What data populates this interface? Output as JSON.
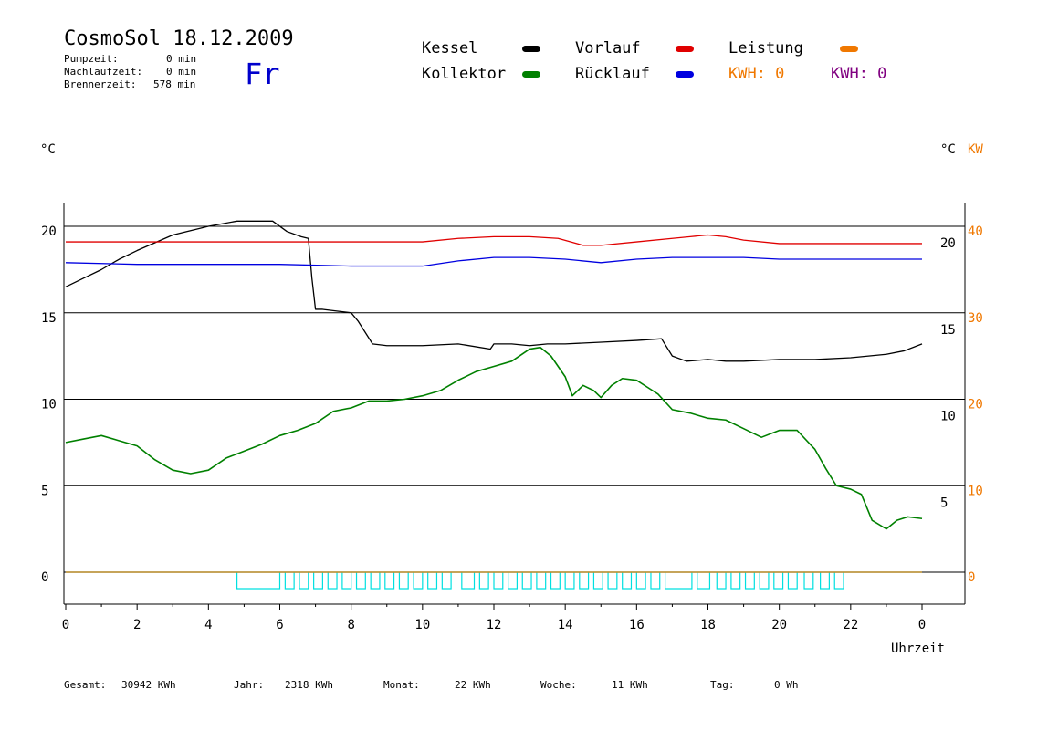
{
  "header": {
    "title": "CosmoSol 18.12.2009",
    "day": "Fr",
    "pumpzeit_label": "Pumpzeit:",
    "pumpzeit_value": "0 min",
    "nachlaufzeit_label": "Nachlaufzeit:",
    "nachlaufzeit_value": "0 min",
    "brennerzeit_label": "Brennerzeit:",
    "brennerzeit_value": "578 min"
  },
  "legend": {
    "kessel": "Kessel",
    "kollektor": "Kollektor",
    "vorlauf": "Vorlauf",
    "ruecklauf": "Rücklauf",
    "leistung": "Leistung",
    "kwh_orange": "KWH: 0",
    "kwh_purple": "KWH: 0"
  },
  "colors": {
    "kessel": "#000000",
    "kollektor": "#008000",
    "vorlauf": "#e00000",
    "ruecklauf": "#0000e0",
    "leistung": "#f07800",
    "kwh_purple": "#800080",
    "pump": "#00e0e0",
    "axis_right_kw": "#f07800"
  },
  "units": {
    "left": "°C",
    "right_c": "°C",
    "right_kw": "KW"
  },
  "footer": {
    "gesamt_label": "Gesamt:",
    "gesamt_value": "30942 KWh",
    "jahr_label": "Jahr:",
    "jahr_value": "2318 KWh",
    "monat_label": "Monat:",
    "monat_value": "22 KWh",
    "woche_label": "Woche:",
    "woche_value": "11 KWh",
    "tag_label": "Tag:",
    "tag_value": "0 Wh"
  },
  "chart_data": {
    "type": "line",
    "xlabel": "Uhrzeit",
    "xlim": [
      0,
      24
    ],
    "x_ticks": [
      "0",
      "2",
      "4",
      "6",
      "8",
      "10",
      "12",
      "14",
      "16",
      "18",
      "20",
      "22",
      "0"
    ],
    "left_axis": {
      "ylim": [
        -1.8,
        21.5
      ],
      "ticks": [
        "0",
        "5",
        "10",
        "15",
        "20"
      ]
    },
    "right_inner_axis": {
      "ticks": [
        "5",
        "10",
        "15",
        "20"
      ]
    },
    "right_kw_axis": {
      "ylim": [
        0,
        40
      ],
      "ticks": [
        "0",
        "10",
        "20",
        "30",
        "40"
      ]
    },
    "grid": true,
    "series": [
      {
        "name": "Kessel",
        "color_key": "kessel",
        "x": [
          0,
          0.5,
          1,
          1.5,
          2,
          3,
          4,
          4.8,
          5.5,
          5.8,
          6.2,
          6.6,
          6.8,
          6.9,
          7,
          7.2,
          7.6,
          8,
          8.2,
          8.6,
          9,
          10,
          11,
          11.9,
          12,
          12.5,
          13,
          13.5,
          14,
          15,
          16,
          16.7,
          17,
          17.4,
          18,
          18.5,
          19,
          20,
          21,
          22,
          23,
          23.5,
          24
        ],
        "y": [
          16.5,
          17,
          17.5,
          18.1,
          18.6,
          19.5,
          20.0,
          20.3,
          20.3,
          20.3,
          19.7,
          19.4,
          19.3,
          17,
          15.2,
          15.2,
          15.1,
          15.0,
          14.5,
          13.2,
          13.1,
          13.1,
          13.2,
          12.9,
          13.2,
          13.2,
          13.1,
          13.2,
          13.2,
          13.3,
          13.4,
          13.5,
          12.5,
          12.2,
          12.3,
          12.2,
          12.2,
          12.3,
          12.3,
          12.4,
          12.6,
          12.8,
          13.2
        ]
      },
      {
        "name": "Kollektor",
        "color_key": "kollektor",
        "x": [
          0,
          0.5,
          1,
          1.5,
          2,
          2.5,
          3,
          3.5,
          4,
          4.5,
          5,
          5.5,
          6,
          6.5,
          7,
          7.5,
          8,
          8.5,
          9,
          9.5,
          10,
          10.5,
          11,
          11.5,
          12,
          12.5,
          13,
          13.3,
          13.6,
          14,
          14.2,
          14.5,
          14.8,
          15,
          15.3,
          15.6,
          16,
          16.3,
          16.6,
          17,
          17.5,
          18,
          18.5,
          19,
          19.5,
          20,
          20.5,
          21,
          21.3,
          21.6,
          22,
          22.3,
          22.6,
          23,
          23.3,
          23.6,
          24
        ],
        "y": [
          7.5,
          7.7,
          7.9,
          7.6,
          7.3,
          6.5,
          5.9,
          5.7,
          5.9,
          6.6,
          7.0,
          7.4,
          7.9,
          8.2,
          8.6,
          9.3,
          9.5,
          9.9,
          9.9,
          10.0,
          10.2,
          10.5,
          11.1,
          11.6,
          11.9,
          12.2,
          12.9,
          13.0,
          12.5,
          11.3,
          10.2,
          10.8,
          10.5,
          10.1,
          10.8,
          11.2,
          11.1,
          10.7,
          10.3,
          9.4,
          9.2,
          8.9,
          8.8,
          8.3,
          7.8,
          8.2,
          8.2,
          7.1,
          6.0,
          5.0,
          4.8,
          4.5,
          3.0,
          2.5,
          3.0,
          3.2,
          3.1
        ]
      },
      {
        "name": "Vorlauf",
        "color_key": "vorlauf",
        "x": [
          0,
          2,
          4,
          6,
          8,
          10,
          11,
          12,
          13,
          13.8,
          14.5,
          15,
          16,
          17,
          17.5,
          18,
          18.5,
          19,
          20,
          22,
          24
        ],
        "y": [
          19.1,
          19.1,
          19.1,
          19.1,
          19.1,
          19.1,
          19.3,
          19.4,
          19.4,
          19.3,
          18.9,
          18.9,
          19.1,
          19.3,
          19.4,
          19.5,
          19.4,
          19.2,
          19.0,
          19.0,
          19.0
        ]
      },
      {
        "name": "Rücklauf",
        "color_key": "ruecklauf",
        "x": [
          0,
          2,
          4,
          6,
          8,
          10,
          11,
          12,
          13,
          14,
          15,
          16,
          17,
          18,
          19,
          20,
          22,
          24
        ],
        "y": [
          17.9,
          17.8,
          17.8,
          17.8,
          17.7,
          17.7,
          18.0,
          18.2,
          18.2,
          18.1,
          17.9,
          18.1,
          18.2,
          18.2,
          18.2,
          18.1,
          18.1,
          18.1
        ]
      },
      {
        "name": "Leistung",
        "color_key": "leistung",
        "x": [
          0,
          24
        ],
        "y": [
          0,
          0
        ]
      }
    ],
    "pump_on_intervals": [
      [
        4.8,
        6.0
      ],
      [
        6.15,
        6.4
      ],
      [
        6.55,
        6.8
      ],
      [
        6.95,
        7.2
      ],
      [
        7.35,
        7.6
      ],
      [
        7.75,
        8.0
      ],
      [
        8.15,
        8.4
      ],
      [
        8.55,
        8.8
      ],
      [
        8.95,
        9.2
      ],
      [
        9.35,
        9.6
      ],
      [
        9.75,
        10.0
      ],
      [
        10.15,
        10.4
      ],
      [
        10.55,
        10.8
      ],
      [
        11.1,
        11.45
      ],
      [
        11.6,
        11.85
      ],
      [
        12.0,
        12.25
      ],
      [
        12.4,
        12.65
      ],
      [
        12.8,
        13.05
      ],
      [
        13.2,
        13.45
      ],
      [
        13.6,
        13.85
      ],
      [
        14.0,
        14.25
      ],
      [
        14.4,
        14.65
      ],
      [
        14.8,
        15.05
      ],
      [
        15.2,
        15.45
      ],
      [
        15.6,
        15.85
      ],
      [
        16.0,
        16.25
      ],
      [
        16.4,
        16.65
      ],
      [
        16.8,
        17.55
      ],
      [
        17.7,
        18.05
      ],
      [
        18.25,
        18.5
      ],
      [
        18.65,
        18.9
      ],
      [
        19.05,
        19.3
      ],
      [
        19.45,
        19.7
      ],
      [
        19.85,
        20.1
      ],
      [
        20.25,
        20.5
      ],
      [
        20.7,
        20.95
      ],
      [
        21.15,
        21.4
      ],
      [
        21.55,
        21.8
      ]
    ]
  }
}
